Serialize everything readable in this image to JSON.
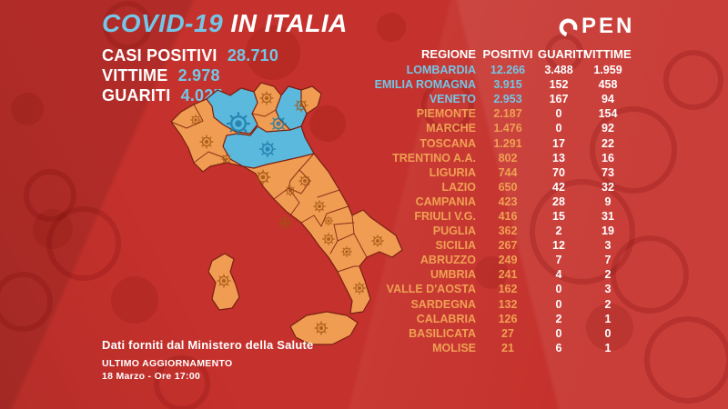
{
  "brand": {
    "name": "OPEN"
  },
  "header": {
    "title_accent": "COVID-19",
    "title_rest": " IN ITALIA"
  },
  "summary": [
    {
      "label": "CASI POSITIVI",
      "value": "28.710"
    },
    {
      "label": "VITTIME",
      "value": "2.978"
    },
    {
      "label": "GUARITI",
      "value": "4.025"
    }
  ],
  "table": {
    "headers": [
      "REGIONE",
      "POSITIVI",
      "GUARITI",
      "VITTIME"
    ],
    "rows": [
      {
        "region": "LOMBARDIA",
        "positivi": "12.266",
        "guariti": "3.488",
        "vittime": "1.959",
        "tone": "blue"
      },
      {
        "region": "EMILIA ROMAGNA",
        "positivi": "3.915",
        "guariti": "152",
        "vittime": "458",
        "tone": "blue"
      },
      {
        "region": "VENETO",
        "positivi": "2.953",
        "guariti": "167",
        "vittime": "94",
        "tone": "blue"
      },
      {
        "region": "PIEMONTE",
        "positivi": "2.187",
        "guariti": "0",
        "vittime": "154",
        "tone": "orange"
      },
      {
        "region": "MARCHE",
        "positivi": "1.476",
        "guariti": "0",
        "vittime": "92",
        "tone": "orange"
      },
      {
        "region": "TOSCANA",
        "positivi": "1.291",
        "guariti": "17",
        "vittime": "22",
        "tone": "orange"
      },
      {
        "region": "TRENTINO A.A.",
        "positivi": "802",
        "guariti": "13",
        "vittime": "16",
        "tone": "orange"
      },
      {
        "region": "LIGURIA",
        "positivi": "744",
        "guariti": "70",
        "vittime": "73",
        "tone": "orange"
      },
      {
        "region": "LAZIO",
        "positivi": "650",
        "guariti": "42",
        "vittime": "32",
        "tone": "orange"
      },
      {
        "region": "CAMPANIA",
        "positivi": "423",
        "guariti": "28",
        "vittime": "9",
        "tone": "orange"
      },
      {
        "region": "FRIULI V.G.",
        "positivi": "416",
        "guariti": "15",
        "vittime": "31",
        "tone": "orange"
      },
      {
        "region": "PUGLIA",
        "positivi": "362",
        "guariti": "2",
        "vittime": "19",
        "tone": "orange"
      },
      {
        "region": "SICILIA",
        "positivi": "267",
        "guariti": "12",
        "vittime": "3",
        "tone": "orange"
      },
      {
        "region": "ABRUZZO",
        "positivi": "249",
        "guariti": "7",
        "vittime": "7",
        "tone": "orange"
      },
      {
        "region": "UMBRIA",
        "positivi": "241",
        "guariti": "4",
        "vittime": "2",
        "tone": "orange"
      },
      {
        "region": "VALLE D'AOSTA",
        "positivi": "162",
        "guariti": "0",
        "vittime": "3",
        "tone": "orange"
      },
      {
        "region": "SARDEGNA",
        "positivi": "132",
        "guariti": "0",
        "vittime": "2",
        "tone": "orange"
      },
      {
        "region": "CALABRIA",
        "positivi": "126",
        "guariti": "2",
        "vittime": "1",
        "tone": "orange"
      },
      {
        "region": "BASILICATA",
        "positivi": "27",
        "guariti": "0",
        "vittime": "0",
        "tone": "orange"
      },
      {
        "region": "MOLISE",
        "positivi": "21",
        "guariti": "6",
        "vittime": "1",
        "tone": "orange"
      }
    ]
  },
  "footer": {
    "source": "Dati forniti dal Ministero della Salute",
    "updated_label": "ULTIMO AGGIORNAMENTO",
    "updated_value": "18 Marzo - Ore 17:00"
  },
  "colors": {
    "background": "#c5312c",
    "accent_blue": "#74c6e6",
    "accent_orange": "#efa053",
    "map_blue": "#5ab9dd",
    "map_orange": "#f09c52",
    "map_border": "#7a2013",
    "text_white": "#ffffff"
  },
  "chart_data": {
    "type": "table",
    "title": "COVID-19 IN ITALIA",
    "summary": {
      "casi_positivi": 28710,
      "vittime": 2978,
      "guariti": 4025
    },
    "columns": [
      "REGIONE",
      "POSITIVI",
      "GUARITI",
      "VITTIME"
    ],
    "rows": [
      [
        "LOMBARDIA",
        12266,
        3488,
        1959
      ],
      [
        "EMILIA ROMAGNA",
        3915,
        152,
        458
      ],
      [
        "VENETO",
        2953,
        167,
        94
      ],
      [
        "PIEMONTE",
        2187,
        0,
        154
      ],
      [
        "MARCHE",
        1476,
        0,
        92
      ],
      [
        "TOSCANA",
        1291,
        17,
        22
      ],
      [
        "TRENTINO A.A.",
        802,
        13,
        16
      ],
      [
        "LIGURIA",
        744,
        70,
        73
      ],
      [
        "LAZIO",
        650,
        42,
        32
      ],
      [
        "CAMPANIA",
        423,
        28,
        9
      ],
      [
        "FRIULI V.G.",
        416,
        15,
        31
      ],
      [
        "PUGLIA",
        362,
        2,
        19
      ],
      [
        "SICILIA",
        267,
        12,
        3
      ],
      [
        "ABRUZZO",
        249,
        7,
        7
      ],
      [
        "UMBRIA",
        241,
        4,
        2
      ],
      [
        "VALLE D'AOSTA",
        162,
        0,
        3
      ],
      [
        "SARDEGNA",
        132,
        0,
        2
      ],
      [
        "CALABRIA",
        126,
        2,
        1
      ],
      [
        "BASILICATA",
        27,
        0,
        0
      ],
      [
        "MOLISE",
        21,
        6,
        1
      ]
    ],
    "map_blue_regions": [
      "LOMBARDIA",
      "VENETO",
      "EMILIA ROMAGNA"
    ],
    "legend_position": "none",
    "source": "Dati forniti dal Ministero della Salute",
    "as_of": "18 Marzo - Ore 17:00"
  }
}
